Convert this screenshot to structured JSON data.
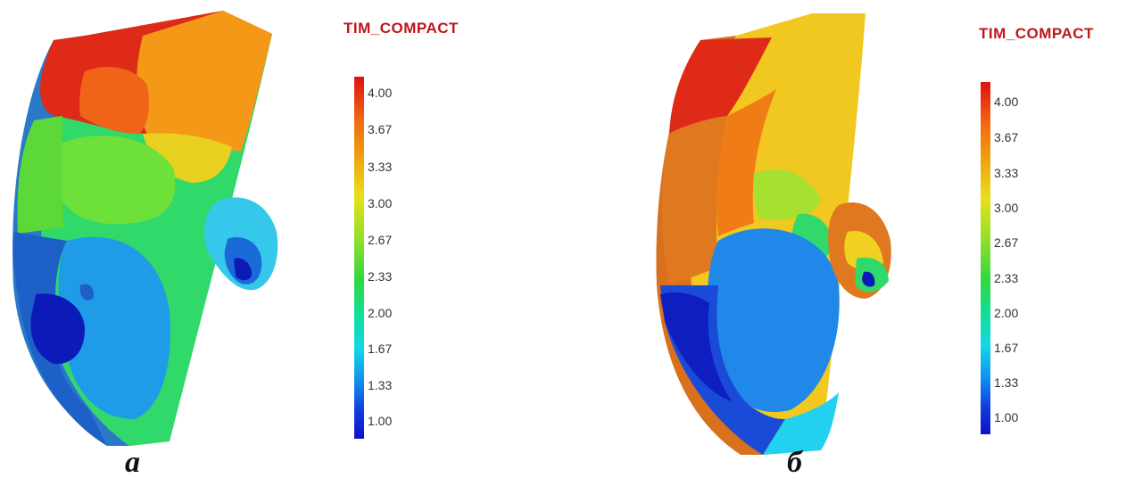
{
  "panels": [
    {
      "label": "а",
      "legend_title": "TIM_COMPACT",
      "ticks": [
        "4.00",
        "3.67",
        "3.33",
        "3.00",
        "2.67",
        "2.33",
        "2.00",
        "1.67",
        "1.33",
        "1.00"
      ]
    },
    {
      "label": "б",
      "legend_title": "TIM_COMPACT",
      "ticks": [
        "4.00",
        "3.67",
        "3.33",
        "3.00",
        "2.67",
        "2.33",
        "2.00",
        "1.67",
        "1.33",
        "1.00"
      ]
    }
  ],
  "colors": {
    "legend_title": "#c0161c",
    "scale_max": "#e01010",
    "scale_mid": "#30d840",
    "scale_min": "#1010c8"
  }
}
